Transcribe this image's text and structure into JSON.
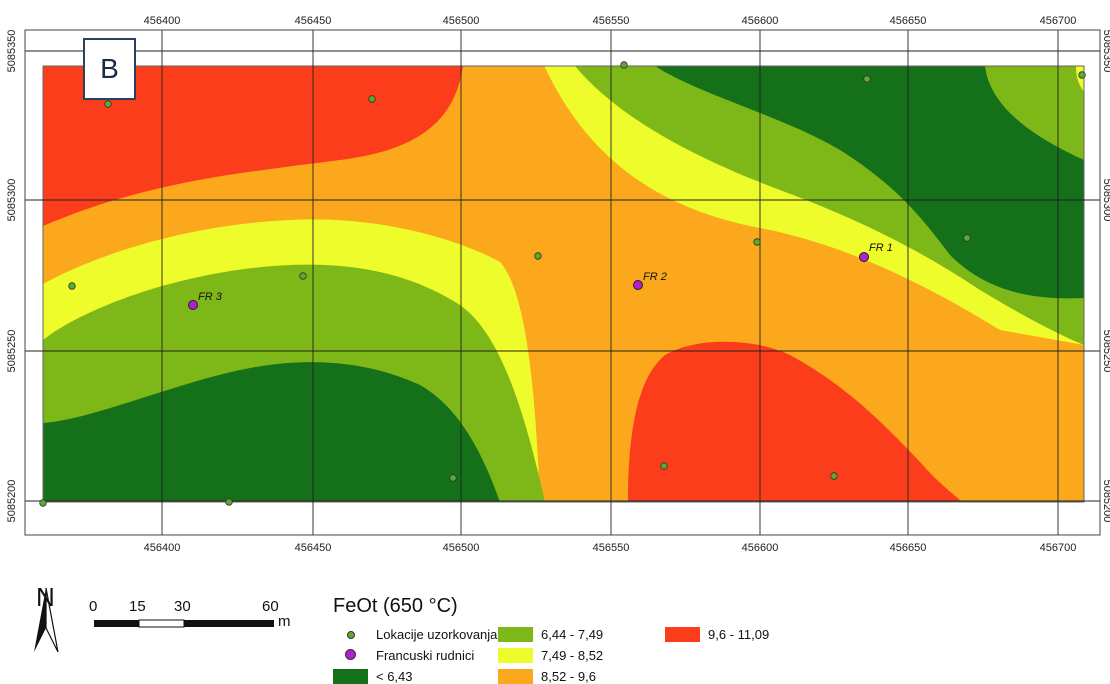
{
  "panel_label": "B",
  "axis": {
    "x_ticks": [
      "456400",
      "456450",
      "456500",
      "456550",
      "456600",
      "456650",
      "456700"
    ],
    "y_ticks": [
      "5085350",
      "5085300",
      "5085250",
      "5085200"
    ]
  },
  "colors": {
    "class1": "#15701a",
    "class2": "#7eb818",
    "class3": "#eefc2c",
    "class4": "#fba81c",
    "class5": "#fc3d1c",
    "sample_point": "#5aaa32",
    "mine_point": "#b21fd0"
  },
  "mines": [
    {
      "label": "FR 1"
    },
    {
      "label": "FR 2"
    },
    {
      "label": "FR 3"
    }
  ],
  "north_arrow": {
    "letter": "N"
  },
  "scale_bar": {
    "labels": [
      "0",
      "15",
      "30",
      "60"
    ],
    "unit": "m"
  },
  "legend": {
    "title": "FeOt (650 °C)",
    "sample_points": "Lokacije uzorkovanja",
    "mines": "Francuski rudnici",
    "class1": "< 6,43",
    "class2": "6,44 - 7,49",
    "class3": "7,49 - 8,52",
    "class4": "8,52 - 9,6",
    "class5": "9,6 - 11,09"
  }
}
